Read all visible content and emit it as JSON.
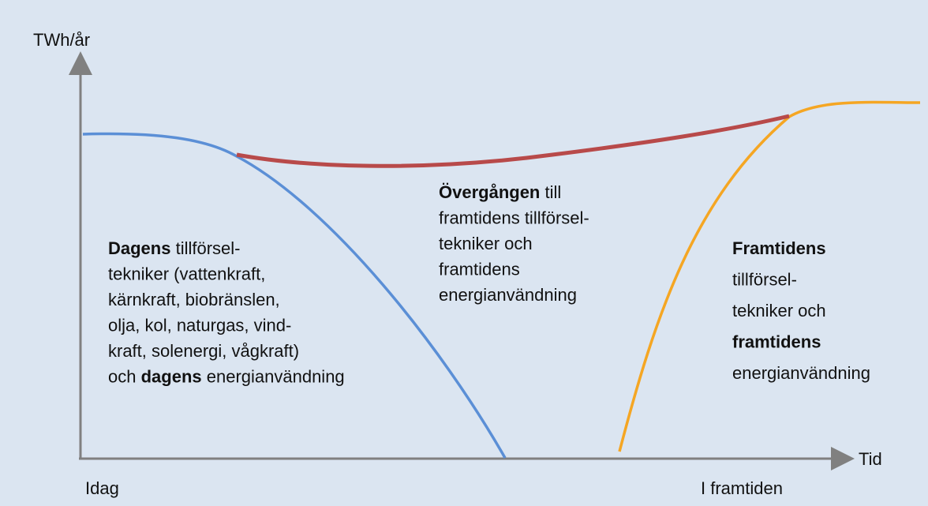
{
  "axis": {
    "y_label": "TWh/år",
    "x_label": "Tid",
    "x_start": "Idag",
    "x_end": "I framtiden"
  },
  "blocks": [
    {
      "lines": [
        [
          {
            "text": "Dagens",
            "bold": true
          },
          {
            "text": " tillförsel-"
          }
        ],
        [
          {
            "text": "tekniker (vattenkraft,"
          }
        ],
        [
          {
            "text": "kärnkraft, biobränslen,"
          }
        ],
        [
          {
            "text": "olja, kol, naturgas, vind-"
          }
        ],
        [
          {
            "text": "kraft, solenergi, vågkraft)"
          }
        ],
        [
          {
            "text": "och "
          },
          {
            "text": "dagens",
            "bold": true
          },
          {
            "text": " energianvändning"
          }
        ]
      ]
    },
    {
      "lines": [
        [
          {
            "text": "Övergången",
            "bold": true
          },
          {
            "text": " till"
          }
        ],
        [
          {
            "text": "framtidens tillförsel-"
          }
        ],
        [
          {
            "text": "tekniker och"
          }
        ],
        [
          {
            "text": "framtidens"
          }
        ],
        [
          {
            "text": "energianvändning"
          }
        ]
      ]
    },
    {
      "lines": [
        [
          {
            "text": "Framtidens",
            "bold": true
          }
        ],
        [
          {
            "text": "tillförsel-"
          }
        ],
        [
          {
            "text": "tekniker och"
          }
        ],
        [
          {
            "text": "framtidens",
            "bold": true
          }
        ],
        [
          {
            "text": "energianvändning"
          }
        ]
      ]
    }
  ]
}
